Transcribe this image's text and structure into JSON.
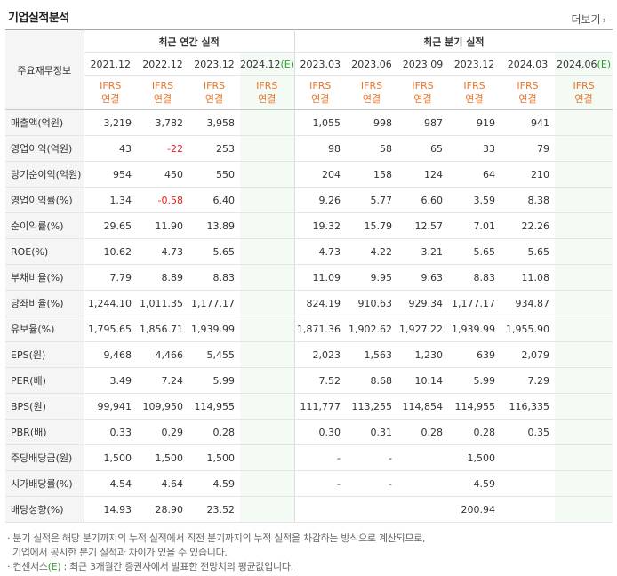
{
  "title": "기업실적분석",
  "more_label": "더보기",
  "side_header": "주요재무정보",
  "groups": {
    "annual": "최근 연간 실적",
    "quarterly": "최근 분기 실적"
  },
  "periods": [
    {
      "label": "2021.12",
      "est": false
    },
    {
      "label": "2022.12",
      "est": false
    },
    {
      "label": "2023.12",
      "est": false
    },
    {
      "label": "2024.12",
      "est": true
    },
    {
      "label": "2023.03",
      "est": false
    },
    {
      "label": "2023.06",
      "est": false
    },
    {
      "label": "2023.09",
      "est": false
    },
    {
      "label": "2023.12",
      "est": false
    },
    {
      "label": "2024.03",
      "est": false
    },
    {
      "label": "2024.06",
      "est": true
    }
  ],
  "est_mark": "(E)",
  "ifrs": {
    "top": "IFRS",
    "bottom": "연결"
  },
  "rows": [
    {
      "label": "매출액(억원)",
      "values": [
        "3,219",
        "3,782",
        "3,958",
        "",
        "1,055",
        "998",
        "987",
        "919",
        "941",
        ""
      ]
    },
    {
      "label": "영업이익(억원)",
      "values": [
        "43",
        "-22",
        "253",
        "",
        "98",
        "58",
        "65",
        "33",
        "79",
        ""
      ]
    },
    {
      "label": "당기순이익(억원)",
      "values": [
        "954",
        "450",
        "550",
        "",
        "204",
        "158",
        "124",
        "64",
        "210",
        ""
      ]
    },
    {
      "label": "영업이익률(%)",
      "values": [
        "1.34",
        "-0.58",
        "6.40",
        "",
        "9.26",
        "5.77",
        "6.60",
        "3.59",
        "8.38",
        ""
      ]
    },
    {
      "label": "순이익률(%)",
      "values": [
        "29.65",
        "11.90",
        "13.89",
        "",
        "19.32",
        "15.79",
        "12.57",
        "7.01",
        "22.26",
        ""
      ]
    },
    {
      "label": "ROE(%)",
      "values": [
        "10.62",
        "4.73",
        "5.65",
        "",
        "4.73",
        "4.22",
        "3.21",
        "5.65",
        "5.65",
        ""
      ]
    },
    {
      "label": "부채비율(%)",
      "values": [
        "7.79",
        "8.89",
        "8.83",
        "",
        "11.09",
        "9.95",
        "9.63",
        "8.83",
        "11.08",
        ""
      ]
    },
    {
      "label": "당좌비율(%)",
      "values": [
        "1,244.10",
        "1,011.35",
        "1,177.17",
        "",
        "824.19",
        "910.63",
        "929.34",
        "1,177.17",
        "934.87",
        ""
      ]
    },
    {
      "label": "유보율(%)",
      "values": [
        "1,795.65",
        "1,856.71",
        "1,939.99",
        "",
        "1,871.36",
        "1,902.62",
        "1,927.22",
        "1,939.99",
        "1,955.90",
        ""
      ]
    },
    {
      "label": "EPS(원)",
      "values": [
        "9,468",
        "4,466",
        "5,455",
        "",
        "2,023",
        "1,563",
        "1,230",
        "639",
        "2,079",
        ""
      ]
    },
    {
      "label": "PER(배)",
      "values": [
        "3.49",
        "7.24",
        "5.99",
        "",
        "7.52",
        "8.68",
        "10.14",
        "5.99",
        "7.29",
        ""
      ]
    },
    {
      "label": "BPS(원)",
      "values": [
        "99,941",
        "109,950",
        "114,955",
        "",
        "111,777",
        "113,255",
        "114,854",
        "114,955",
        "116,335",
        ""
      ]
    },
    {
      "label": "PBR(배)",
      "values": [
        "0.33",
        "0.29",
        "0.28",
        "",
        "0.30",
        "0.31",
        "0.28",
        "0.28",
        "0.35",
        ""
      ]
    },
    {
      "label": "주당배당금(원)",
      "values": [
        "1,500",
        "1,500",
        "1,500",
        "",
        "-",
        "-",
        "",
        "1,500",
        "",
        ""
      ]
    },
    {
      "label": "시가배당률(%)",
      "values": [
        "4.54",
        "4.64",
        "4.59",
        "",
        "-",
        "-",
        "",
        "4.59",
        "",
        ""
      ]
    },
    {
      "label": "배당성향(%)",
      "values": [
        "14.93",
        "28.90",
        "23.52",
        "",
        "",
        "",
        "",
        "200.94",
        "",
        ""
      ]
    }
  ],
  "notes": {
    "line1": "· 분기 실적은 해당 분기까지의 누적 실적에서 직전 분기까지의 누적 실적을 차감하는 방식으로 계산되므로,",
    "line2": "  기업에서 공시한 분기 실적과 차이가 있을 수 있습니다.",
    "line3_prefix": "· 컨센서스",
    "line3_mark": "(E)",
    "line3_suffix": " : 최근 3개월간 증권사에서 발표한 전망치의 평균값입니다."
  },
  "colors": {
    "ifrs": "#e8762c",
    "negative": "#e02020",
    "estimate_bg": "#f4fbf4",
    "estimate_mark": "#2a9d2a"
  }
}
